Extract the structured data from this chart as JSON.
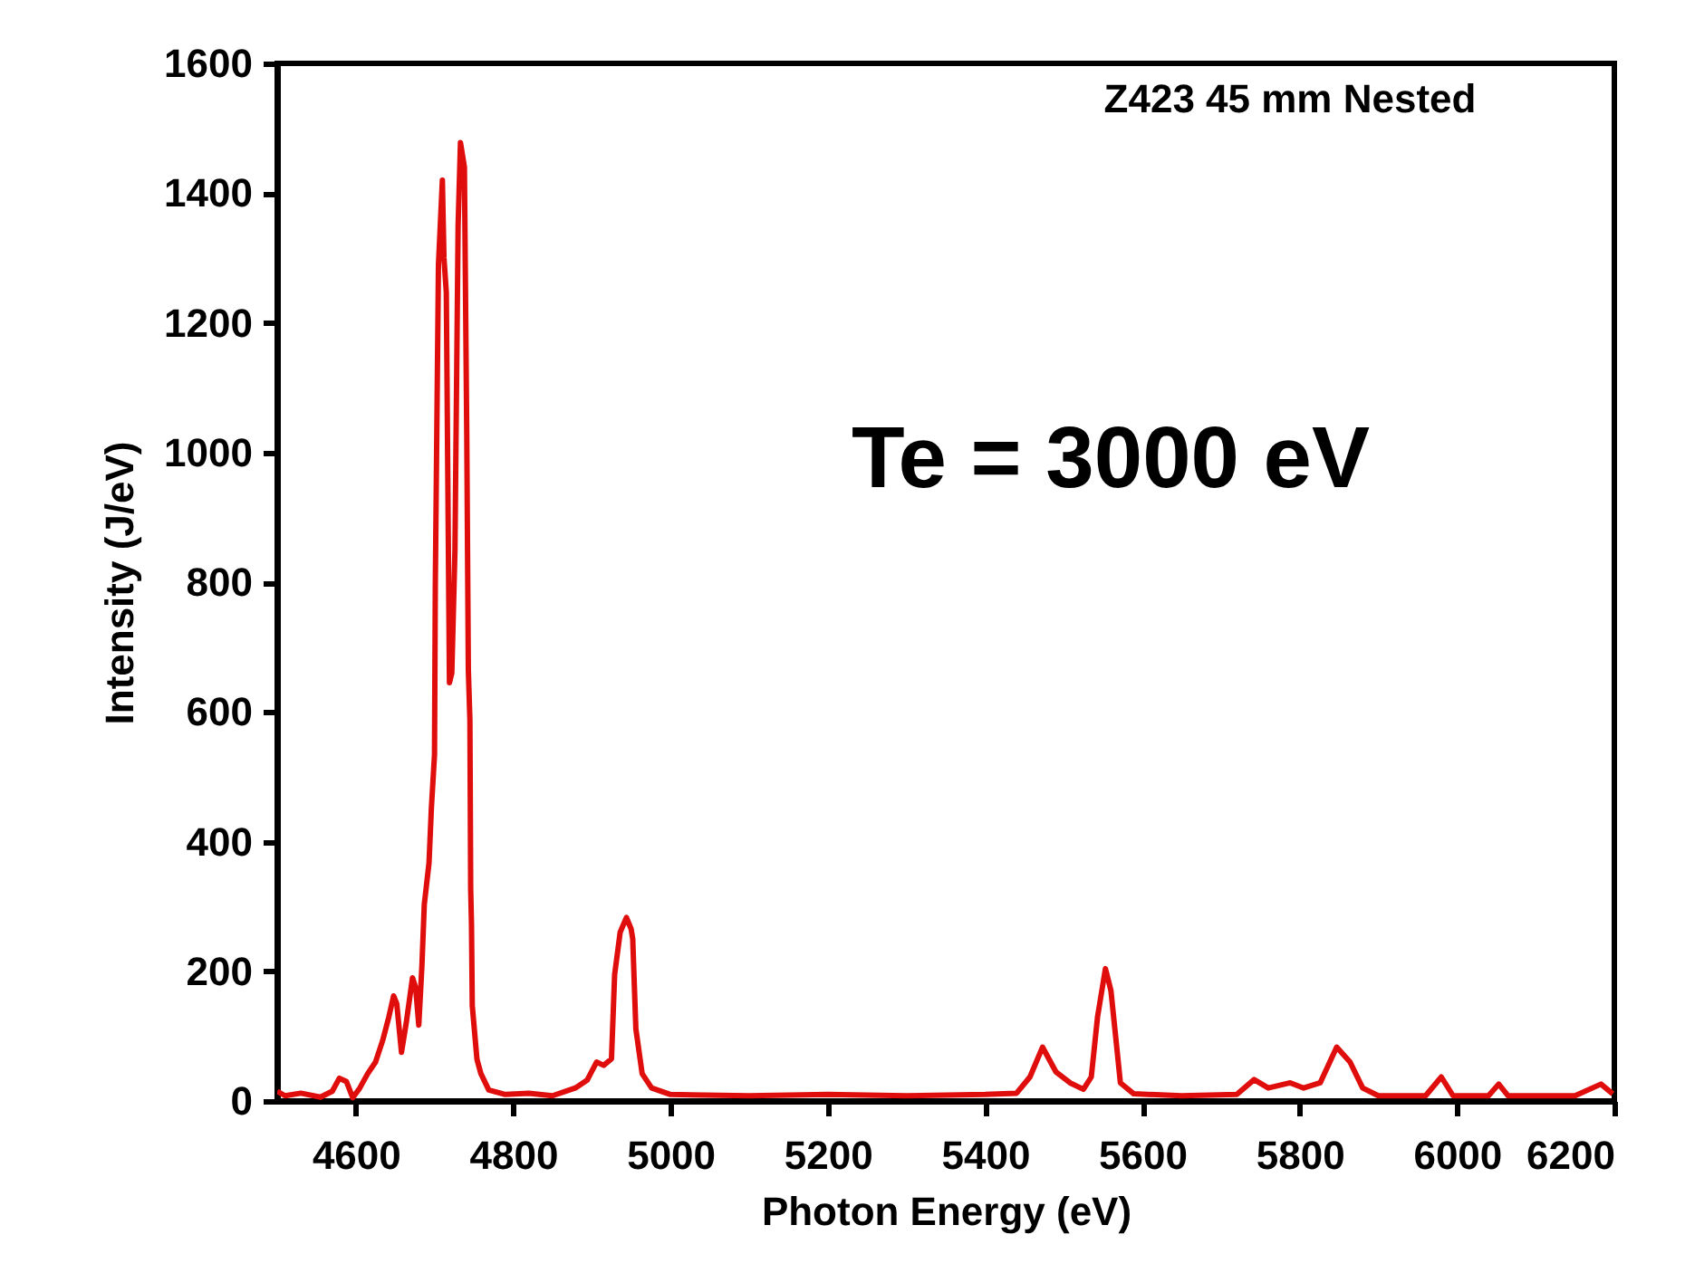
{
  "chart_data": {
    "type": "line",
    "xlabel": "Photon Energy (eV)",
    "ylabel": "Intensity (J/eV)",
    "annotations": [
      "Z423 45 mm Nested",
      "Te = 3000 eV"
    ],
    "xlim": [
      4500,
      6200
    ],
    "ylim": [
      0,
      1600
    ],
    "xticks": [
      4600,
      4800,
      5000,
      5200,
      5400,
      5600,
      5800,
      6000,
      6200
    ],
    "yticks": [
      0,
      200,
      400,
      600,
      800,
      1000,
      1200,
      1400,
      1600
    ],
    "grid": false,
    "legend": false,
    "marker": "none",
    "line_style": "solid",
    "series": [
      {
        "color": "#e00d0d",
        "x": [
          4500,
          4510,
          4530,
          4555,
          4570,
          4579,
          4588,
          4596,
          4605,
          4615,
          4625,
          4634,
          4642,
          4648,
          4652,
          4658,
          4664,
          4672,
          4676,
          4680,
          4684,
          4687,
          4693,
          4696,
          4700,
          4701,
          4705,
          4710,
          4712,
          4715,
          4719,
          4722,
          4726,
          4730,
          4733,
          4738,
          4741,
          4743,
          4745,
          4746,
          4747,
          4748,
          4754,
          4759,
          4769,
          4790,
          4820,
          4850,
          4879,
          4894,
          4906,
          4915,
          4925,
          4929,
          4936,
          4944,
          4950,
          4952,
          4956,
          4964,
          4976,
          5000,
          5100,
          5200,
          5300,
          5400,
          5440,
          5457,
          5473,
          5490,
          5508,
          5525,
          5535,
          5543,
          5553,
          5560,
          5565,
          5572,
          5589,
          5650,
          5720,
          5742,
          5760,
          5788,
          5805,
          5826,
          5847,
          5864,
          5880,
          5900,
          5960,
          5980,
          5995,
          6040,
          6053,
          6065,
          6150,
          6183,
          6198
        ],
        "values": [
          15,
          8,
          12,
          6,
          15,
          35,
          30,
          5,
          20,
          42,
          60,
          93,
          130,
          162,
          150,
          75,
          120,
          190,
          175,
          117,
          209,
          303,
          367,
          451,
          534,
          796,
          1289,
          1420,
          1300,
          1247,
          645,
          660,
          850,
          1350,
          1478,
          1440,
          1027,
          665,
          587,
          326,
          273,
          147,
          64,
          42,
          17,
          10,
          12,
          8,
          20,
          32,
          60,
          55,
          65,
          195,
          260,
          283,
          265,
          250,
          111,
          42,
          20,
          10,
          8,
          10,
          8,
          10,
          12,
          37,
          83,
          45,
          28,
          18,
          37,
          130,
          204,
          170,
          111,
          28,
          11,
          8,
          10,
          33,
          20,
          28,
          20,
          28,
          83,
          60,
          20,
          8,
          8,
          37,
          8,
          8,
          26,
          8,
          8,
          26,
          11
        ]
      }
    ]
  }
}
